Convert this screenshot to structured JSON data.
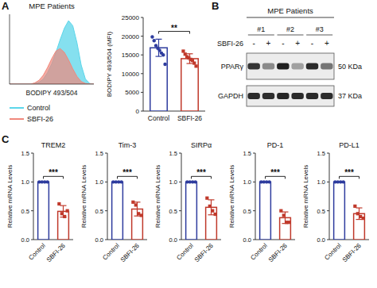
{
  "chart_data": [
    {
      "type": "area",
      "panel_label": "A",
      "title": "MPE Patients",
      "x_label": "BODIPY 493/504",
      "x": [
        0,
        5,
        10,
        15,
        20,
        25,
        30,
        35,
        40,
        45,
        50,
        55,
        60,
        65,
        70,
        75,
        80,
        85,
        90,
        95,
        100
      ],
      "xlim": [
        0,
        100
      ],
      "ylim": [
        0,
        110
      ],
      "tick_labels": false,
      "legend": "bottom",
      "series": [
        {
          "name": "Control",
          "color": "#5cd6ea",
          "values": [
            0,
            0,
            0,
            0,
            0,
            0,
            1,
            3,
            8,
            18,
            32,
            50,
            70,
            88,
            100,
            92,
            65,
            30,
            8,
            1,
            0
          ]
        },
        {
          "name": "SBFI-26",
          "color": "#f0887c",
          "values": [
            0,
            0,
            0,
            0,
            0,
            0,
            2,
            6,
            14,
            26,
            40,
            52,
            56,
            50,
            38,
            24,
            12,
            4,
            1,
            0,
            0
          ]
        }
      ]
    },
    {
      "type": "bar",
      "y_label": "BODIPY 493/504 (MFI)",
      "categories": [
        "Control",
        "SBFI-26"
      ],
      "values": [
        16900,
        14000
      ],
      "errors": [
        2300,
        1300
      ],
      "colors": [
        "#2e3c9e",
        "#c0392b"
      ],
      "points": [
        [
          19800,
          18800,
          17500,
          16800,
          16200,
          15500,
          15000,
          12500
        ],
        [
          16000,
          15200,
          14500,
          14200,
          13800,
          13500,
          12800,
          12000
        ]
      ],
      "ylim": [
        0,
        25000
      ],
      "yticks": [
        0,
        5000,
        10000,
        15000,
        20000,
        25000
      ],
      "significance": "**"
    },
    {
      "type": "western_blot",
      "panel_label": "B",
      "title": "MPE Patients",
      "groups": [
        "#1",
        "#2",
        "#3"
      ],
      "treatment_label": "SBFI-26",
      "lanes": [
        "-",
        "+",
        "-",
        "+",
        "-",
        "+"
      ],
      "rows": [
        {
          "name": "PPARγ",
          "size": "50 KDa",
          "intensities": [
            0.85,
            0.45,
            0.95,
            0.35,
            0.9,
            0.55
          ]
        },
        {
          "name": "GAPDH",
          "size": "37 KDa",
          "intensities": [
            0.9,
            0.88,
            0.92,
            0.9,
            0.9,
            0.89
          ]
        }
      ]
    },
    {
      "type": "bar",
      "panel_label": "C",
      "title": "TREM2",
      "y_label": "Relative mRNA Levels",
      "categories": [
        "Control",
        "SBFI-26"
      ],
      "values": [
        1,
        0.49
      ],
      "errors": [
        0,
        0.1
      ],
      "colors": [
        "#2e3c9e",
        "#c0392b"
      ],
      "points": [
        [
          1,
          1,
          1,
          1
        ],
        [
          0.62,
          0.45,
          0.4,
          0.5
        ]
      ],
      "ylim": [
        0,
        1.5
      ],
      "yticks": [
        {
          "value": 0,
          "label": "0.0"
        },
        {
          "value": 0.5,
          "label": "0.5"
        },
        {
          "value": 1,
          "label": "1.0"
        },
        {
          "value": 1.5,
          "label": "1.5"
        }
      ],
      "significance": "***"
    },
    {
      "type": "bar",
      "title": "Tim-3",
      "y_label": "Relative mRNA Levels",
      "categories": [
        "Control",
        "SBFI-26"
      ],
      "values": [
        1,
        0.53
      ],
      "errors": [
        0,
        0.12
      ],
      "colors": [
        "#2e3c9e",
        "#c0392b"
      ],
      "points": [
        [
          1,
          1,
          1,
          1
        ],
        [
          0.65,
          0.6,
          0.45,
          0.42
        ]
      ],
      "ylim": [
        0,
        1.5
      ],
      "yticks": [
        {
          "value": 0,
          "label": "0.0"
        },
        {
          "value": 0.5,
          "label": "0.5"
        },
        {
          "value": 1,
          "label": "1.0"
        },
        {
          "value": 1.5,
          "label": "1.5"
        }
      ],
      "significance": "***"
    },
    {
      "type": "bar",
      "title": "SIRPα",
      "y_label": "Relative mRNA Levels",
      "categories": [
        "Control",
        "SBFI-26"
      ],
      "values": [
        1,
        0.56
      ],
      "errors": [
        0,
        0.13
      ],
      "colors": [
        "#2e3c9e",
        "#c0392b"
      ],
      "points": [
        [
          1,
          1,
          1,
          1
        ],
        [
          0.72,
          0.58,
          0.5,
          0.44
        ]
      ],
      "ylim": [
        0,
        1.5
      ],
      "yticks": [
        {
          "value": 0,
          "label": "0.0"
        },
        {
          "value": 0.5,
          "label": "0.5"
        },
        {
          "value": 1,
          "label": "1.0"
        },
        {
          "value": 1.5,
          "label": "1.5"
        }
      ],
      "significance": "***"
    },
    {
      "type": "bar",
      "title": "PD-1",
      "y_label": "Relative mRNA Levels",
      "categories": [
        "Control",
        "SBFI-26"
      ],
      "values": [
        1,
        0.38
      ],
      "errors": [
        0,
        0.1
      ],
      "colors": [
        "#2e3c9e",
        "#c0392b"
      ],
      "points": [
        [
          1,
          1,
          1,
          1
        ],
        [
          0.5,
          0.42,
          0.3,
          0.3
        ]
      ],
      "ylim": [
        0,
        1.5
      ],
      "yticks": [
        {
          "value": 0,
          "label": "0.0"
        },
        {
          "value": 0.5,
          "label": "0.5"
        },
        {
          "value": 1,
          "label": "1.0"
        },
        {
          "value": 1.5,
          "label": "1.5"
        }
      ],
      "significance": "***"
    },
    {
      "type": "bar",
      "title": "PD-L1",
      "y_label": "Relative mRNA Levels",
      "categories": [
        "Control",
        "SBFI-26"
      ],
      "values": [
        1,
        0.45
      ],
      "errors": [
        0,
        0.1
      ],
      "colors": [
        "#2e3c9e",
        "#c0392b"
      ],
      "points": [
        [
          1,
          1,
          1,
          1
        ],
        [
          0.58,
          0.45,
          0.4,
          0.37
        ]
      ],
      "ylim": [
        0,
        1.5
      ],
      "yticks": [
        {
          "value": 0,
          "label": "0.0"
        },
        {
          "value": 0.5,
          "label": "0.5"
        },
        {
          "value": 1,
          "label": "1.0"
        },
        {
          "value": 1.5,
          "label": "1.5"
        }
      ],
      "significance": "***"
    }
  ]
}
